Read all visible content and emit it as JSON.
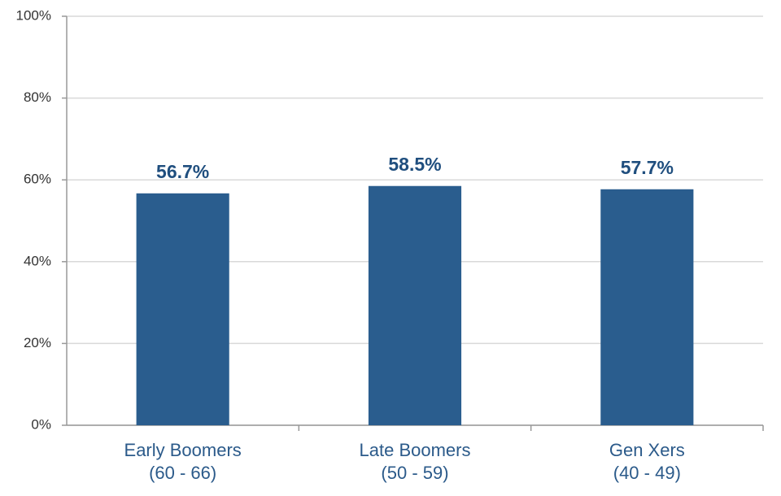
{
  "chart_data": {
    "type": "bar",
    "categories": [
      [
        "Early Boomers",
        "(60 - 66)"
      ],
      [
        "Late Boomers",
        "(50 - 59)"
      ],
      [
        "Gen Xers",
        "(40 - 49)"
      ]
    ],
    "values": [
      56.7,
      58.5,
      57.7
    ],
    "value_labels": [
      "56.7%",
      "58.5%",
      "57.7%"
    ],
    "color": "#2a5d8e",
    "ylim": [
      0,
      100
    ],
    "yticks": [
      {
        "value": 0,
        "label": "0%"
      },
      {
        "value": 20,
        "label": "20%"
      },
      {
        "value": 40,
        "label": "40%"
      },
      {
        "value": 60,
        "label": "60%"
      },
      {
        "value": 80,
        "label": "80%"
      },
      {
        "value": 100,
        "label": "100%"
      }
    ],
    "grid": true
  }
}
